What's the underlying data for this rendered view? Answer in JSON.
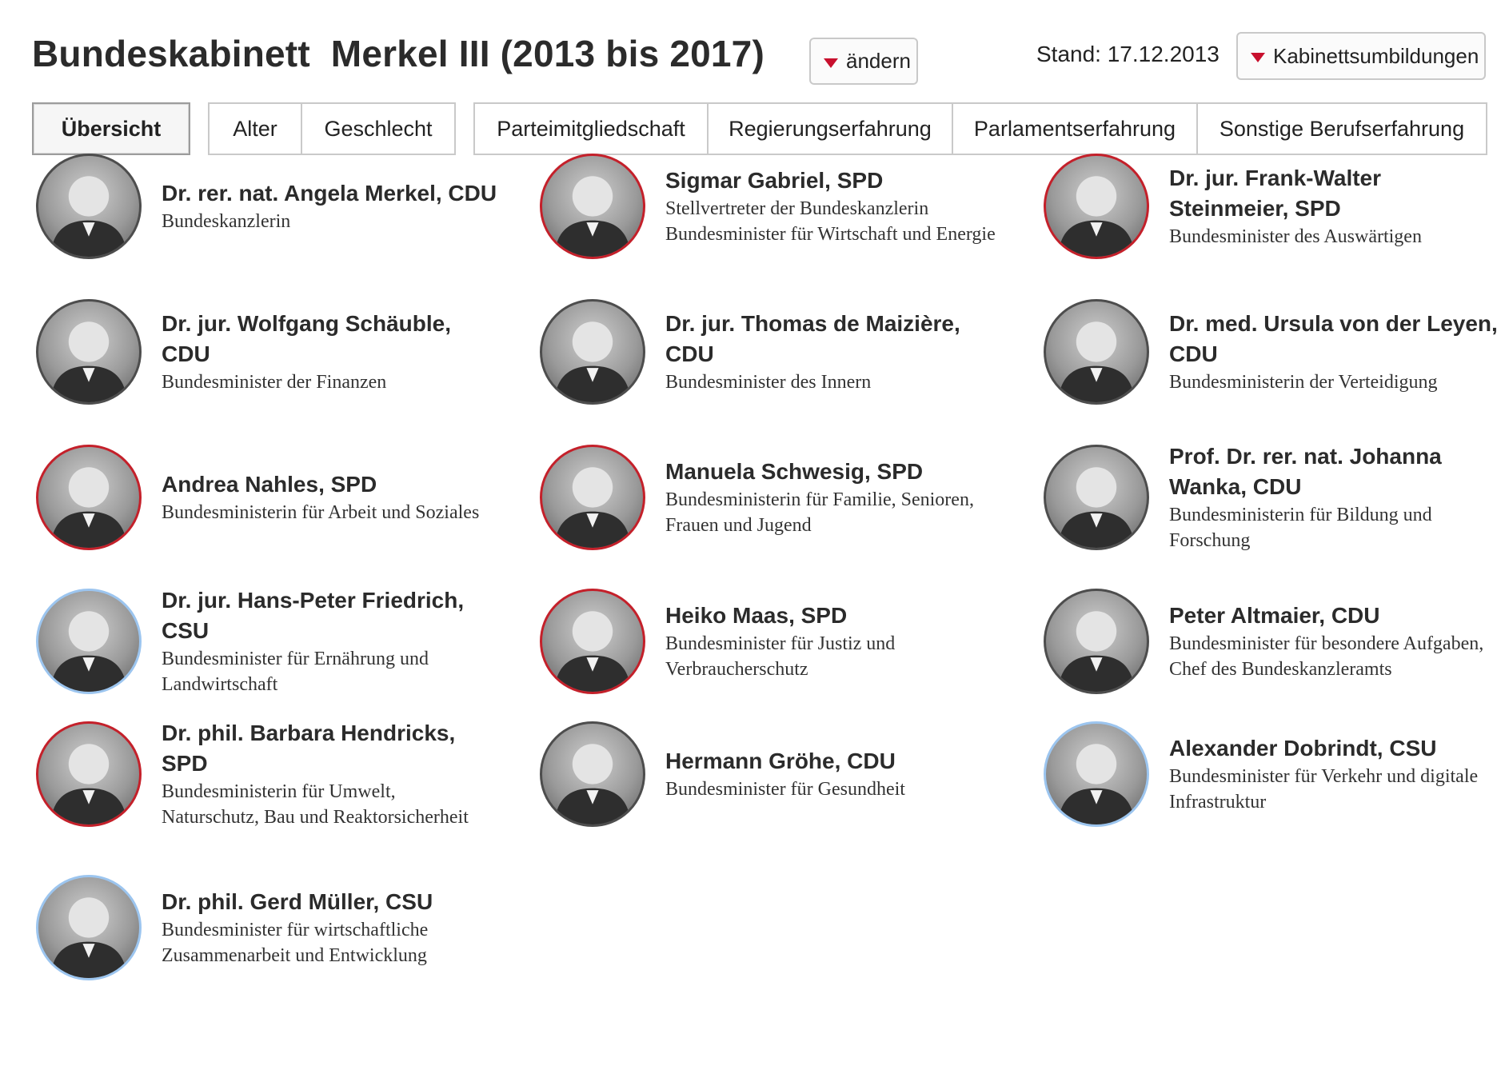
{
  "header": {
    "title": "Bundeskabinett  Merkel III (2013 bis 2017)",
    "change_label": "ändern",
    "stand": "Stand: 17.12.2013",
    "reshuffle_label": "Kabinettsumbildungen",
    "accent_color": "#c8102e"
  },
  "tabs": [
    {
      "label": "Übersicht",
      "active": true
    },
    {
      "label": "Alter"
    },
    {
      "label": "Geschlecht"
    },
    {
      "label": "Parteimitgliedschaft"
    },
    {
      "label": "Regierungserfahrung"
    },
    {
      "label": "Parlamentserfahrung"
    },
    {
      "label": "Sonstige Berufserfahrung"
    }
  ],
  "party_colors": {
    "CDU": "#4d4d4d",
    "SPD": "#c4202a",
    "CSU": "#9cc5ef"
  },
  "members": [
    {
      "name": "Dr. rer. nat. Angela Merkel, CDU",
      "role": "Bundeskanzlerin",
      "party": "CDU"
    },
    {
      "name": "Sigmar Gabriel, SPD",
      "role": "Stellvertreter der Bundeskanzlerin Bundesminister für Wirtschaft und Energie",
      "party": "SPD"
    },
    {
      "name": "Dr. jur. Frank-Walter Steinmeier, SPD",
      "role": "Bundesminister des Auswärtigen",
      "party": "SPD"
    },
    {
      "name": "Dr. jur. Wolfgang Schäuble, CDU",
      "role": "Bundesminister der Finanzen",
      "party": "CDU"
    },
    {
      "name": "Dr. jur. Thomas de Maizière, CDU",
      "role": "Bundesminister des Innern",
      "party": "CDU"
    },
    {
      "name": "Dr. med. Ursula von der Leyen, CDU",
      "role": "Bundesministerin der Verteidigung",
      "party": "CDU"
    },
    {
      "name": "Andrea Nahles, SPD",
      "role": "Bundesministerin für Arbeit und Soziales",
      "party": "SPD"
    },
    {
      "name": "Manuela Schwesig, SPD",
      "role": "Bundesministerin für Familie, Senioren, Frauen und Jugend",
      "party": "SPD"
    },
    {
      "name": "Prof. Dr. rer. nat. Johanna Wanka, CDU",
      "role": "Bundesministerin für Bildung und Forschung",
      "party": "CDU"
    },
    {
      "name": "Dr. jur. Hans-Peter Friedrich, CSU",
      "role": "Bundesminister für Ernährung und Landwirtschaft",
      "party": "CSU"
    },
    {
      "name": "Heiko Maas, SPD",
      "role": "Bundesminister für Justiz und Verbraucherschutz",
      "party": "SPD"
    },
    {
      "name": "Peter Altmaier, CDU",
      "role": "Bundesminister für besondere Aufgaben, Chef des Bundeskanzleramts",
      "party": "CDU"
    },
    {
      "name": "Dr. phil. Barbara Hendricks, SPD",
      "role": "Bundesministerin für Umwelt, Naturschutz, Bau und Reaktorsicherheit",
      "party": "SPD"
    },
    {
      "name": "Hermann Gröhe, CDU",
      "role": "Bundesminister für Gesundheit",
      "party": "CDU"
    },
    {
      "name": "Alexander Dobrindt, CSU",
      "role": "Bundesminister für Verkehr und digitale Infrastruktur",
      "party": "CSU"
    },
    {
      "name": "Dr. phil. Gerd Müller, CSU",
      "role": "Bundesminister für wirtschaftliche Zusammenarbeit und Entwicklung",
      "party": "CSU"
    }
  ]
}
